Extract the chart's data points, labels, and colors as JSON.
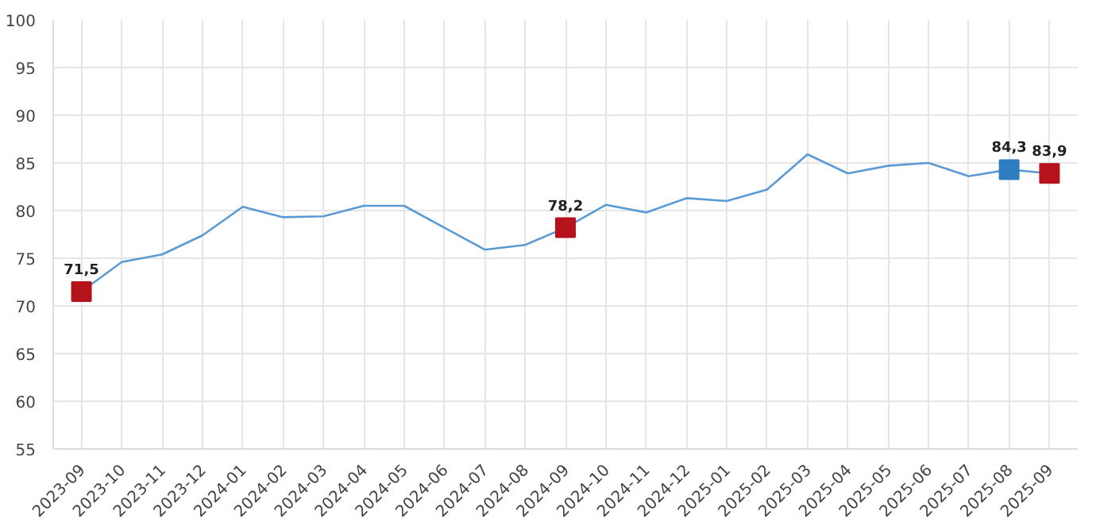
{
  "chart_data": {
    "type": "line",
    "categories": [
      "2023-09",
      "2023-10",
      "2023-11",
      "2023-12",
      "2024-01",
      "2024-02",
      "2024-03",
      "2024-04",
      "2024-05",
      "2024-06",
      "2024-07",
      "2024-08",
      "2024-09",
      "2024-10",
      "2024-11",
      "2024-12",
      "2025-01",
      "2025-02",
      "2025-03",
      "2025-04",
      "2025-05",
      "2025-06",
      "2025-07",
      "2025-08",
      "2025-09"
    ],
    "series": [
      {
        "color": "#5b9bd5",
        "values": [
          71.5,
          74.6,
          75.4,
          77.4,
          80.4,
          79.3,
          79.4,
          80.5,
          80.5,
          78.2,
          75.9,
          76.4,
          78.2,
          80.6,
          79.8,
          81.3,
          81.0,
          82.2,
          85.9,
          83.9,
          84.7,
          85.0,
          83.6,
          84.3,
          83.9
        ]
      },
      {
        "type": "scatter",
        "values": [
          71.5,
          null,
          null,
          null,
          null,
          null,
          null,
          null,
          null,
          null,
          null,
          null,
          78.2,
          null,
          null,
          null,
          null,
          null,
          null,
          null,
          null,
          null,
          null,
          84.3,
          83.9
        ],
        "colors": [
          "#b5121b",
          null,
          null,
          null,
          null,
          null,
          null,
          null,
          null,
          null,
          null,
          null,
          "#b5121b",
          null,
          null,
          null,
          null,
          null,
          null,
          null,
          null,
          null,
          null,
          "#2e7dc0",
          "#b5121b"
        ],
        "value_labels": [
          "71,5",
          null,
          null,
          null,
          null,
          null,
          null,
          null,
          null,
          null,
          null,
          null,
          "78,2",
          null,
          null,
          null,
          null,
          null,
          null,
          null,
          null,
          null,
          null,
          "84,3",
          "83,9"
        ],
        "marker": "square"
      }
    ],
    "ylim": [
      55,
      100
    ],
    "yticks": [
      55,
      60,
      65,
      70,
      75,
      80,
      85,
      90,
      95,
      100
    ],
    "grid": true
  }
}
